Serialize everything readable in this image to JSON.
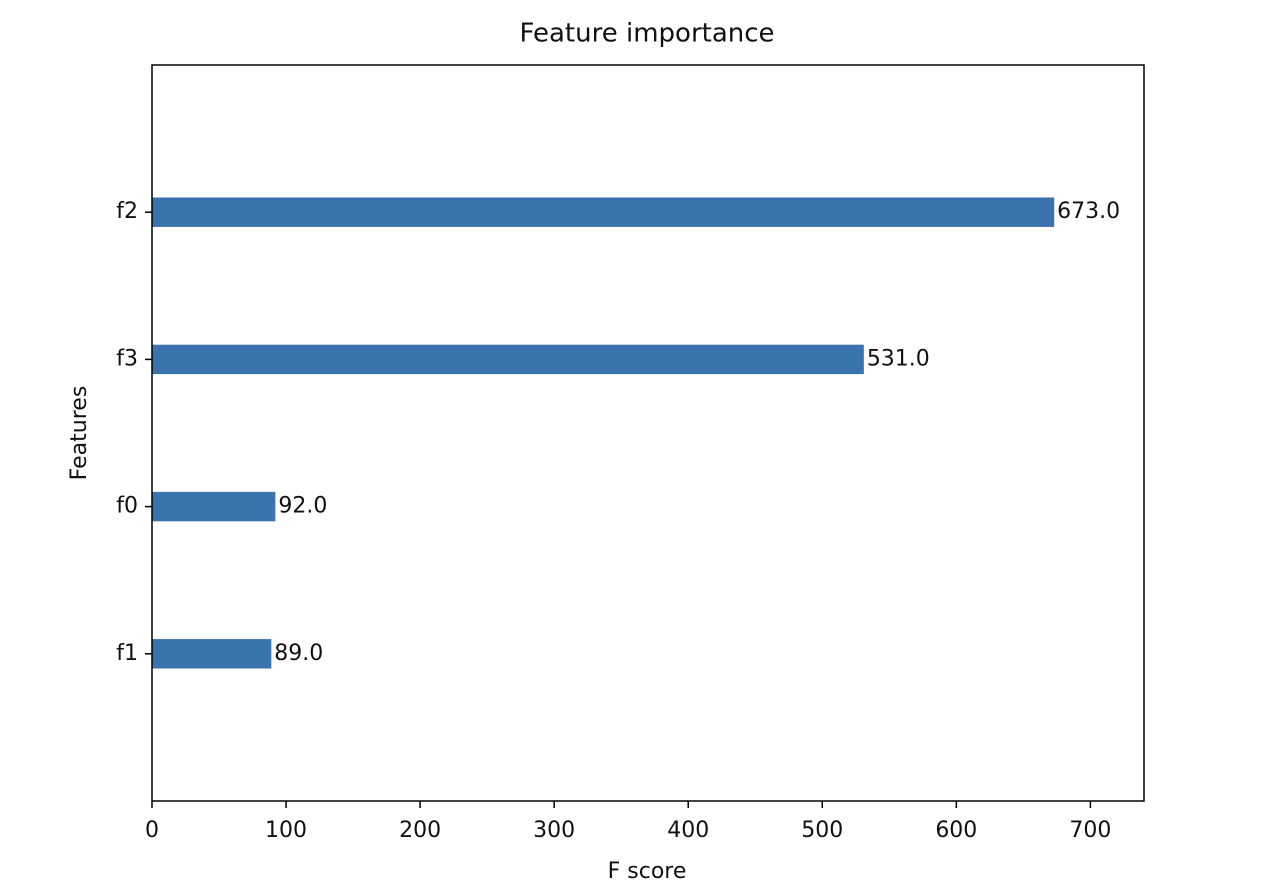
{
  "chart_data": {
    "type": "barh",
    "title": "Feature importance",
    "xlabel": "F score",
    "ylabel": "Features",
    "categories": [
      "f2",
      "f3",
      "f0",
      "f1"
    ],
    "values": [
      673,
      531,
      92,
      89
    ],
    "value_labels": [
      "673.0",
      "531.0",
      "92.0",
      "89.0"
    ],
    "color": "#3a73ad",
    "xlim": [
      0,
      740
    ],
    "xticks": [
      0,
      100,
      200,
      300,
      400,
      500,
      600,
      700
    ],
    "grid": false
  }
}
